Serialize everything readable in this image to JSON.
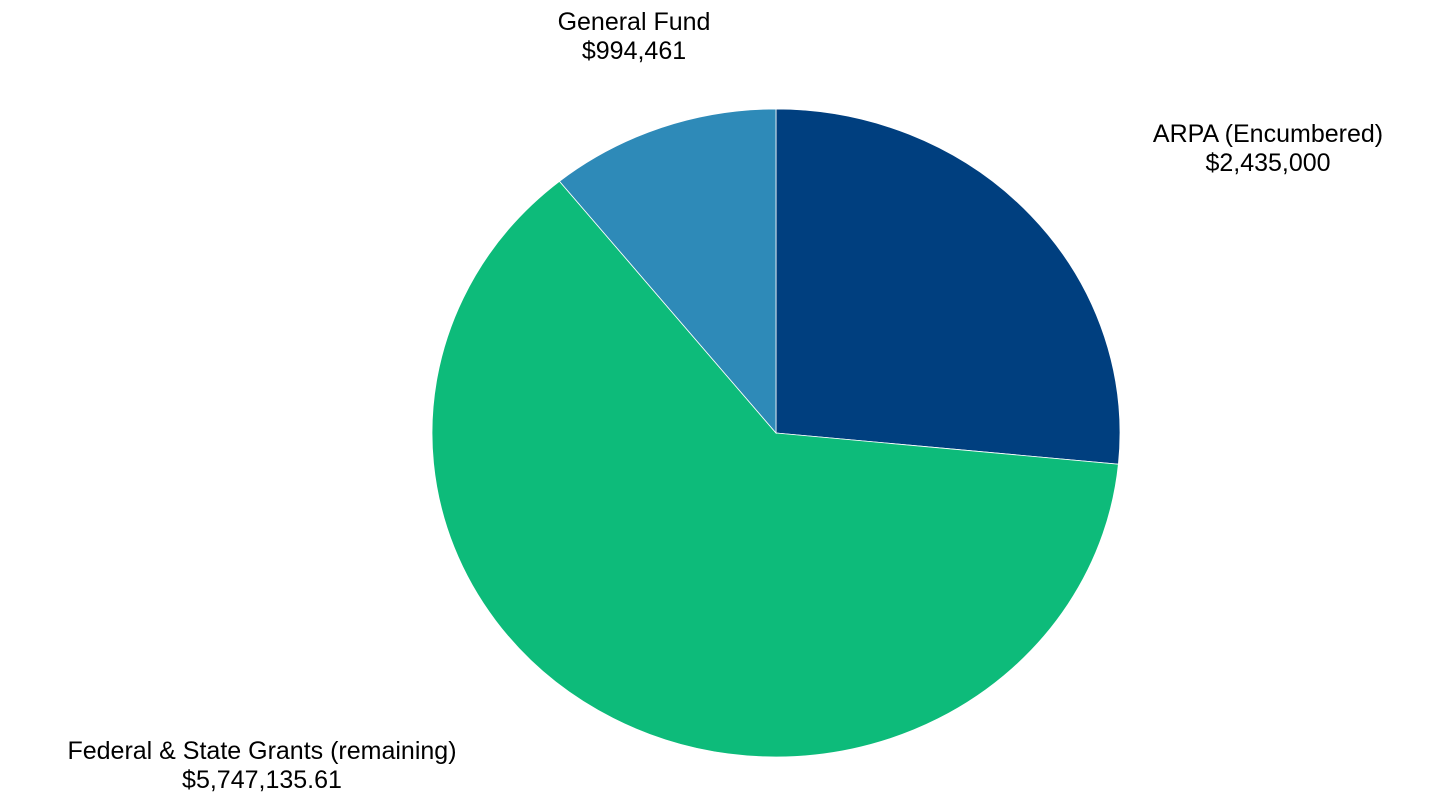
{
  "chart_data": {
    "type": "pie",
    "title": "",
    "start_angle_deg": 0,
    "direction": "clockwise",
    "slices": [
      {
        "label": "ARPA (Encumbered)",
        "value_text": "$2,435,000",
        "value": 2435000,
        "color": "#003f7f"
      },
      {
        "label": "Federal & State Grants (remaining)",
        "value_text": "$5,747,135.61",
        "value": 5747135.61,
        "color": "#0dbb7a"
      },
      {
        "label": "General Fund",
        "value_text": "$994,461",
        "value": 994461,
        "color": "#2e8ab8"
      }
    ]
  }
}
